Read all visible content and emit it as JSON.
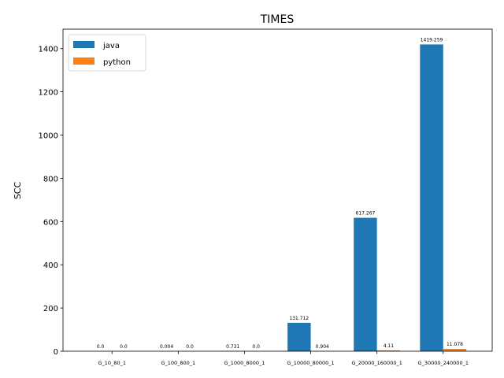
{
  "chart_data": {
    "type": "bar",
    "title": "TIMES",
    "xlabel": "",
    "ylabel": "SCC",
    "ylim": [
      0,
      1490
    ],
    "yticks": [
      0,
      200,
      400,
      600,
      800,
      1000,
      1200,
      1400
    ],
    "categories": [
      "G_10_80_1",
      "G_100_800_1",
      "G_1000_8000_1",
      "G_10000_80000_1",
      "G_20000_160000_1",
      "G_30000_240000_1"
    ],
    "series": [
      {
        "name": "java",
        "values": [
          0.0,
          0.004,
          0.731,
          131.712,
          617.267,
          1419.259
        ],
        "labels": [
          "0.0",
          "0.004",
          "0.731",
          "131.712",
          "617.267",
          "1419.259"
        ]
      },
      {
        "name": "python",
        "values": [
          0.0,
          0.0,
          0.0,
          0.904,
          4.11,
          11.078
        ],
        "labels": [
          "0.0",
          "0.0",
          "0.0",
          "0.904",
          "4.11",
          "11.078"
        ]
      }
    ],
    "colors": {
      "java": "#1f77b4",
      "python": "#ff7f0e"
    },
    "legend_position": "top-left",
    "grid": false
  }
}
